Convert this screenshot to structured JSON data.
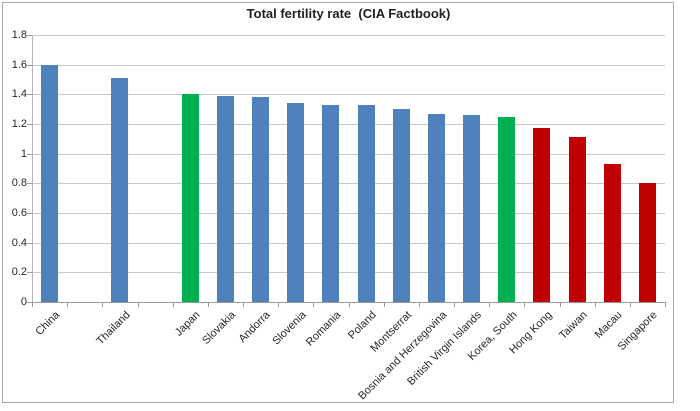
{
  "chart_data": {
    "type": "bar",
    "title": "Total fertility rate  (CIA Factbook)",
    "xlabel": "",
    "ylabel": "",
    "ylim": [
      0,
      1.8
    ],
    "ytick_labels": [
      "0",
      "0.2",
      "0.4",
      "0.6",
      "0.8",
      "1",
      "1.2",
      "1.4",
      "1.6",
      "1.8"
    ],
    "grid": true,
    "legend": false,
    "bar_colors": {
      "default_blue": "#4F81BD",
      "highlight_green": "#00B050",
      "highlight_red": "#C00000"
    },
    "bars": [
      {
        "label": "China",
        "value": 1.6,
        "color": "#4F81BD"
      },
      {
        "label": "",
        "value": null,
        "color": null
      },
      {
        "label": "Thailand",
        "value": 1.51,
        "color": "#4F81BD"
      },
      {
        "label": "",
        "value": null,
        "color": null
      },
      {
        "label": "Japan",
        "value": 1.4,
        "color": "#00B050"
      },
      {
        "label": "Slovakia",
        "value": 1.39,
        "color": "#4F81BD"
      },
      {
        "label": "Andorra",
        "value": 1.38,
        "color": "#4F81BD"
      },
      {
        "label": "Slovenia",
        "value": 1.34,
        "color": "#4F81BD"
      },
      {
        "label": "Romania",
        "value": 1.33,
        "color": "#4F81BD"
      },
      {
        "label": "Poland",
        "value": 1.33,
        "color": "#4F81BD"
      },
      {
        "label": "Montserrat",
        "value": 1.3,
        "color": "#4F81BD"
      },
      {
        "label": "Bosnia and Herzegovina",
        "value": 1.27,
        "color": "#4F81BD"
      },
      {
        "label": "British Virgin Islands",
        "value": 1.26,
        "color": "#4F81BD"
      },
      {
        "label": "Korea, South",
        "value": 1.25,
        "color": "#00B050"
      },
      {
        "label": "Hong Kong",
        "value": 1.17,
        "color": "#C00000"
      },
      {
        "label": "Taiwan",
        "value": 1.11,
        "color": "#C00000"
      },
      {
        "label": "Macau",
        "value": 0.93,
        "color": "#C00000"
      },
      {
        "label": "Singapore",
        "value": 0.8,
        "color": "#C00000"
      }
    ]
  }
}
